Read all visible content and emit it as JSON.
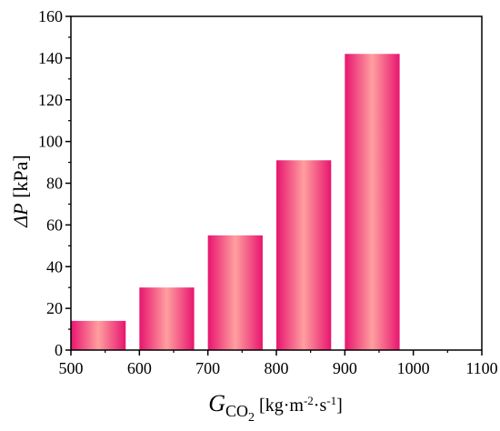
{
  "chart_data": {
    "type": "bar",
    "x_ticks": [
      "500",
      "600",
      "700",
      "800",
      "900",
      "1000",
      "1100"
    ],
    "x_range": [
      500,
      1100
    ],
    "bars": [
      {
        "x_start": 500,
        "x_end": 580,
        "value": 14
      },
      {
        "x_start": 600,
        "x_end": 680,
        "value": 30
      },
      {
        "x_start": 700,
        "x_end": 780,
        "value": 55
      },
      {
        "x_start": 800,
        "x_end": 880,
        "value": 91
      },
      {
        "x_start": 900,
        "x_end": 980,
        "value": 142
      }
    ],
    "y_ticks": [
      "0",
      "20",
      "40",
      "60",
      "80",
      "100",
      "120",
      "140",
      "160"
    ],
    "ylim": [
      0,
      160
    ],
    "ylabel": {
      "delta": "Δ",
      "var": "P",
      "unit": " [kPa]"
    },
    "xlabel": {
      "var": "G",
      "sub": "CO",
      "subsub": "2",
      "unit_pre": " [kg·m",
      "sup1": "-2",
      "mid": "·s",
      "sup2": "-1",
      "unit_post": "]"
    },
    "grid": false,
    "legend": "none",
    "colors": {
      "bar_edge": "#e8156f",
      "bar_center": "#ff9f9f",
      "axis": "#000000"
    }
  }
}
